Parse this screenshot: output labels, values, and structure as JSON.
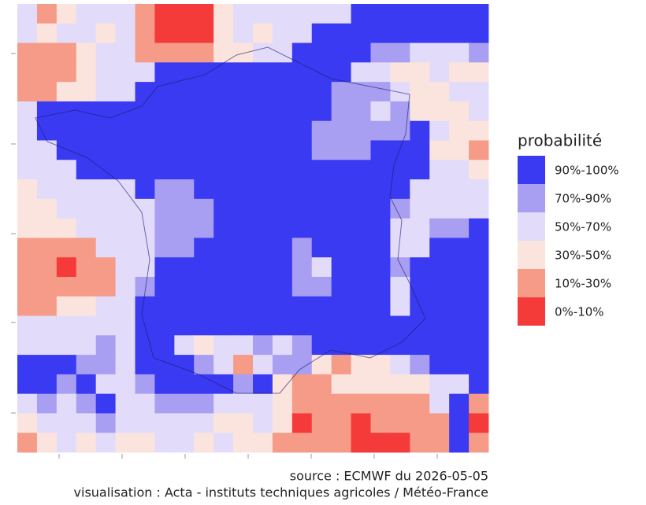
{
  "map": {
    "legend": {
      "title": "probabilité",
      "classes": [
        {
          "label": "90%-100%",
          "color": "#3a3af2"
        },
        {
          "label": "70%-90%",
          "color": "#a99ff2"
        },
        {
          "label": "50%-70%",
          "color": "#e2dcfa"
        },
        {
          "label": "30%-50%",
          "color": "#fbe4dd"
        },
        {
          "label": "10%-30%",
          "color": "#f59b88"
        },
        {
          "label": "0%-10%",
          "color": "#f53a3a"
        }
      ]
    },
    "grid": [
      [
        2,
        4,
        3,
        2,
        2,
        2,
        4,
        5,
        5,
        5,
        3,
        2,
        2,
        2,
        2,
        2,
        2,
        0,
        0,
        0,
        0,
        0,
        0,
        0
      ],
      [
        2,
        3,
        2,
        2,
        3,
        2,
        4,
        5,
        5,
        5,
        3,
        2,
        3,
        2,
        2,
        0,
        0,
        0,
        0,
        0,
        0,
        0,
        0,
        0
      ],
      [
        4,
        4,
        4,
        3,
        2,
        2,
        4,
        4,
        4,
        4,
        3,
        3,
        2,
        2,
        0,
        0,
        0,
        0,
        1,
        1,
        2,
        2,
        2,
        1
      ],
      [
        4,
        4,
        4,
        3,
        2,
        2,
        2,
        0,
        0,
        0,
        0,
        0,
        0,
        0,
        0,
        0,
        0,
        2,
        2,
        3,
        3,
        2,
        3,
        3
      ],
      [
        4,
        4,
        3,
        3,
        2,
        2,
        0,
        0,
        0,
        0,
        0,
        0,
        0,
        0,
        0,
        0,
        1,
        1,
        1,
        2,
        3,
        3,
        2,
        2
      ],
      [
        2,
        0,
        0,
        0,
        0,
        0,
        0,
        0,
        0,
        0,
        0,
        0,
        0,
        0,
        0,
        0,
        1,
        1,
        2,
        1,
        3,
        3,
        3,
        2
      ],
      [
        2,
        0,
        0,
        0,
        0,
        0,
        0,
        0,
        0,
        0,
        0,
        0,
        0,
        0,
        0,
        1,
        1,
        1,
        1,
        1,
        0,
        2,
        3,
        3
      ],
      [
        2,
        2,
        0,
        0,
        0,
        0,
        0,
        0,
        0,
        0,
        0,
        0,
        0,
        0,
        0,
        1,
        1,
        1,
        0,
        0,
        0,
        3,
        3,
        4
      ],
      [
        2,
        2,
        2,
        0,
        0,
        0,
        0,
        0,
        0,
        0,
        0,
        0,
        0,
        0,
        0,
        0,
        0,
        0,
        0,
        0,
        0,
        2,
        2,
        3
      ],
      [
        3,
        2,
        2,
        2,
        2,
        2,
        0,
        1,
        1,
        0,
        0,
        0,
        0,
        0,
        0,
        0,
        0,
        0,
        0,
        0,
        2,
        2,
        2,
        2
      ],
      [
        3,
        3,
        2,
        2,
        2,
        2,
        2,
        1,
        1,
        1,
        0,
        0,
        0,
        0,
        0,
        0,
        0,
        0,
        0,
        1,
        2,
        2,
        2,
        2
      ],
      [
        3,
        3,
        3,
        2,
        2,
        2,
        2,
        1,
        1,
        1,
        0,
        0,
        0,
        0,
        0,
        0,
        0,
        0,
        0,
        2,
        2,
        1,
        1,
        0
      ],
      [
        4,
        4,
        4,
        4,
        2,
        2,
        2,
        1,
        1,
        0,
        0,
        0,
        0,
        0,
        1,
        0,
        0,
        0,
        0,
        2,
        2,
        0,
        0,
        0
      ],
      [
        4,
        4,
        5,
        4,
        4,
        2,
        2,
        0,
        0,
        0,
        0,
        0,
        0,
        0,
        1,
        2,
        0,
        0,
        0,
        1,
        0,
        0,
        0,
        0
      ],
      [
        4,
        4,
        4,
        4,
        4,
        2,
        1,
        0,
        0,
        0,
        0,
        0,
        0,
        0,
        1,
        1,
        0,
        0,
        0,
        2,
        0,
        0,
        0,
        0
      ],
      [
        4,
        4,
        3,
        3,
        2,
        2,
        0,
        0,
        0,
        0,
        0,
        0,
        0,
        0,
        0,
        0,
        0,
        0,
        0,
        2,
        0,
        0,
        0,
        0
      ],
      [
        2,
        2,
        2,
        2,
        2,
        2,
        0,
        0,
        0,
        0,
        0,
        0,
        0,
        0,
        0,
        0,
        0,
        0,
        0,
        0,
        0,
        0,
        0,
        0
      ],
      [
        2,
        2,
        2,
        2,
        1,
        2,
        0,
        0,
        2,
        3,
        2,
        2,
        1,
        2,
        1,
        0,
        0,
        0,
        0,
        0,
        0,
        0,
        0,
        0
      ],
      [
        0,
        0,
        0,
        1,
        1,
        2,
        0,
        0,
        0,
        1,
        2,
        4,
        2,
        1,
        1,
        3,
        4,
        3,
        3,
        2,
        1,
        0,
        0,
        0
      ],
      [
        0,
        0,
        1,
        0,
        2,
        2,
        1,
        0,
        0,
        0,
        0,
        1,
        0,
        3,
        4,
        4,
        3,
        3,
        3,
        3,
        3,
        2,
        2,
        0
      ],
      [
        2,
        1,
        2,
        1,
        0,
        2,
        2,
        1,
        1,
        1,
        2,
        2,
        2,
        3,
        4,
        4,
        4,
        4,
        4,
        4,
        4,
        2,
        0,
        4
      ],
      [
        3,
        2,
        2,
        2,
        1,
        2,
        2,
        2,
        2,
        2,
        3,
        3,
        2,
        3,
        5,
        4,
        4,
        5,
        4,
        4,
        4,
        4,
        0,
        5
      ],
      [
        4,
        3,
        2,
        3,
        2,
        3,
        3,
        2,
        2,
        3,
        2,
        3,
        3,
        4,
        4,
        4,
        4,
        5,
        5,
        5,
        4,
        4,
        0,
        4
      ]
    ],
    "source": "source : ECMWF du 2026-05-05",
    "credit": "visualisation : Acta - instituts techniques agricoles / Météo-France"
  }
}
